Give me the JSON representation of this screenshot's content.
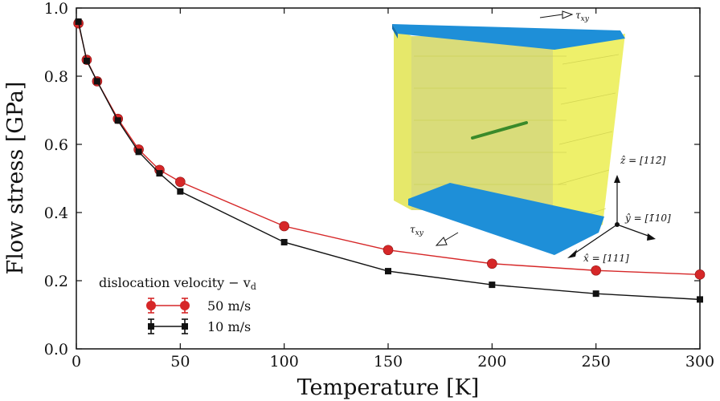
{
  "chart_data": {
    "type": "line",
    "title": "",
    "xlabel": "Temperature [K]",
    "ylabel": "Flow stress [GPa]",
    "xlim": [
      0,
      300
    ],
    "ylim": [
      0.0,
      1.0
    ],
    "xticks": [
      0,
      50,
      100,
      150,
      200,
      250,
      300
    ],
    "yticks": [
      0.0,
      0.2,
      0.4,
      0.6,
      0.8,
      1.0
    ],
    "xtick_labels": [
      "0",
      "50",
      "100",
      "150",
      "200",
      "250",
      "300"
    ],
    "ytick_labels": [
      "0.0",
      "0.2",
      "0.4",
      "0.6",
      "0.8",
      "1.0"
    ],
    "grid": false,
    "legend": {
      "title": "dislocation velocity − v",
      "title_sub": "d",
      "placement": "bottom-left"
    },
    "series": [
      {
        "name": "50 m/s",
        "color": "#d62728",
        "marker": "circle",
        "x": [
          1,
          5,
          10,
          20,
          30,
          40,
          50,
          100,
          150,
          200,
          250,
          300
        ],
        "y": [
          0.955,
          0.848,
          0.785,
          0.675,
          0.585,
          0.525,
          0.49,
          0.36,
          0.29,
          0.25,
          0.23,
          0.218
        ]
      },
      {
        "name": "10 m/s",
        "color": "#111111",
        "marker": "square",
        "x": [
          1,
          5,
          10,
          20,
          30,
          40,
          50,
          100,
          150,
          200,
          250,
          300
        ],
        "y": [
          0.96,
          0.845,
          0.785,
          0.67,
          0.578,
          0.515,
          0.462,
          0.313,
          0.228,
          0.188,
          0.162,
          0.145
        ]
      }
    ],
    "inset": {
      "description_labels": {
        "tau_top": "τ",
        "tau_top_sub": "xy",
        "tau_bottom": "τ",
        "tau_bottom_sub": "xy",
        "z_axis": "ẑ = [112̄]",
        "y_axis": "ŷ = [1̄10]",
        "x_axis": "x̂ = [111]"
      },
      "colors": {
        "slab": "#1e8fd8",
        "wall": "#e8ea5a",
        "dislocation": "#3a8a2a"
      }
    }
  }
}
